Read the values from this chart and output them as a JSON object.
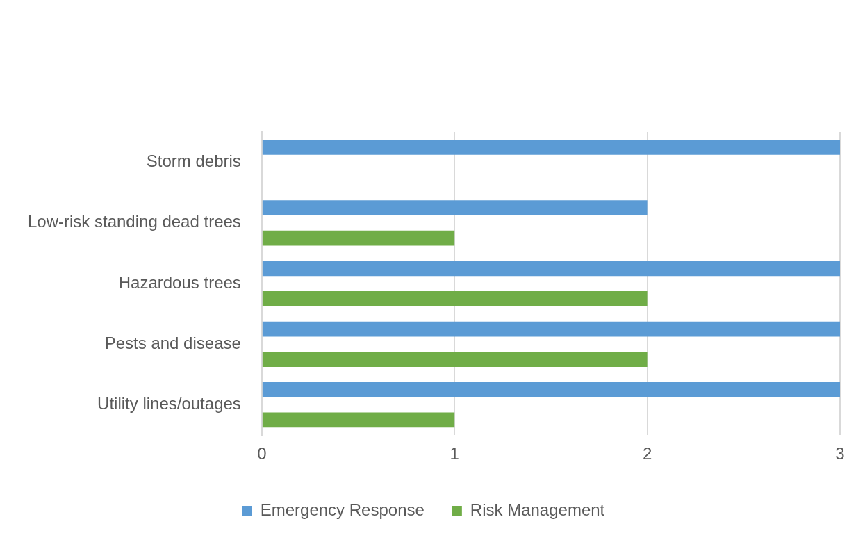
{
  "chart_data": {
    "type": "bar",
    "orientation": "horizontal",
    "categories": [
      "Storm debris",
      "Low-risk standing dead trees",
      "Hazardous trees",
      "Pests and disease",
      "Utility lines/outages"
    ],
    "series": [
      {
        "name": "Emergency Response",
        "color": "#5b9bd5",
        "values": [
          3,
          2,
          3,
          3,
          3
        ]
      },
      {
        "name": "Risk Management",
        "color": "#70ad47",
        "values": [
          0,
          1,
          2,
          2,
          1
        ]
      }
    ],
    "xlim": [
      0,
      3
    ],
    "xticks": [
      0,
      1,
      2,
      3
    ],
    "grid": "x",
    "legend": "bottom"
  }
}
